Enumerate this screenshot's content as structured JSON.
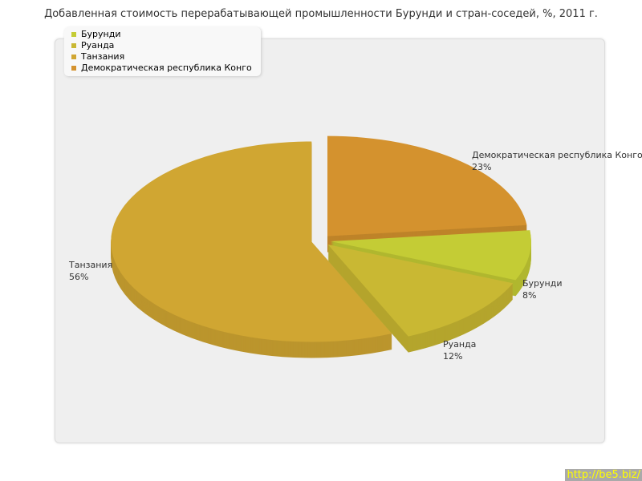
{
  "chart_data": {
    "type": "pie",
    "title": "Добавленная стоимость перерабатывающей промышленности Бурунди и стран-соседей, %, 2011 г.",
    "legend_position": "top-left",
    "slices": [
      {
        "name": "Бурунди",
        "value": 8,
        "label": "8%",
        "color": "#c4cc35"
      },
      {
        "name": "Руанда",
        "value": 12,
        "label": "12%",
        "color": "#c9b833"
      },
      {
        "name": "Танзания",
        "value": 56,
        "label": "56%",
        "color": "#d0a632"
      },
      {
        "name": "Демократическая республика Конго",
        "value": 23,
        "label": "23%",
        "color": "#d4922e"
      }
    ],
    "three_d": true,
    "exploded": true
  },
  "watermark": "http://be5.biz/"
}
